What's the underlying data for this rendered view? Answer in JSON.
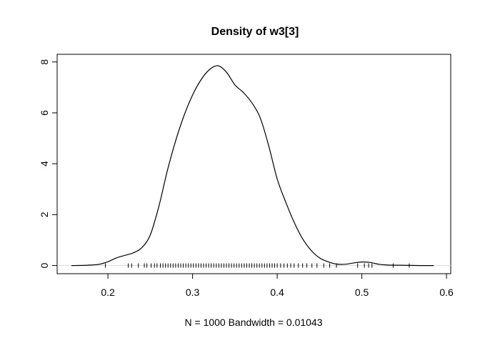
{
  "chart_data": {
    "type": "line",
    "title": "Density of w3[3]",
    "xlabel": "N = 1000   Bandwidth = 0.01043",
    "ylabel": "",
    "xlim": [
      0.14,
      0.605
    ],
    "ylim": [
      -0.32,
      8.3
    ],
    "x_ticks": [
      0.2,
      0.3,
      0.4,
      0.5,
      0.6
    ],
    "x_tick_labels": [
      "0.2",
      "0.3",
      "0.4",
      "0.5",
      "0.6"
    ],
    "y_ticks": [
      0,
      2,
      4,
      6,
      8
    ],
    "y_tick_labels": [
      "0",
      "2",
      "4",
      "6",
      "8"
    ],
    "zero_reference_line": true,
    "series": [
      {
        "x": [
          0.157,
          0.175,
          0.19,
          0.2,
          0.21,
          0.22,
          0.23,
          0.24,
          0.25,
          0.26,
          0.27,
          0.28,
          0.29,
          0.3,
          0.31,
          0.32,
          0.33,
          0.34,
          0.35,
          0.36,
          0.37,
          0.38,
          0.39,
          0.4,
          0.41,
          0.42,
          0.43,
          0.44,
          0.45,
          0.46,
          0.47,
          0.48,
          0.49,
          0.5,
          0.51,
          0.52,
          0.53,
          0.55,
          0.57,
          0.585
        ],
        "y": [
          0.0,
          0.01,
          0.05,
          0.15,
          0.3,
          0.4,
          0.5,
          0.7,
          1.2,
          2.3,
          3.7,
          4.9,
          5.9,
          6.7,
          7.3,
          7.7,
          7.85,
          7.6,
          7.1,
          6.8,
          6.4,
          5.8,
          4.7,
          3.4,
          2.5,
          1.7,
          1.05,
          0.6,
          0.3,
          0.15,
          0.06,
          0.05,
          0.1,
          0.14,
          0.12,
          0.05,
          0.02,
          0.01,
          0.0,
          0.0
        ]
      }
    ],
    "rug": [
      0.197,
      0.224,
      0.228,
      0.236,
      0.243,
      0.246,
      0.251,
      0.255,
      0.258,
      0.262,
      0.265,
      0.268,
      0.271,
      0.274,
      0.277,
      0.28,
      0.283,
      0.286,
      0.289,
      0.292,
      0.295,
      0.298,
      0.301,
      0.304,
      0.307,
      0.31,
      0.313,
      0.316,
      0.319,
      0.322,
      0.325,
      0.328,
      0.331,
      0.334,
      0.337,
      0.34,
      0.343,
      0.346,
      0.349,
      0.352,
      0.355,
      0.358,
      0.361,
      0.364,
      0.367,
      0.37,
      0.373,
      0.376,
      0.379,
      0.382,
      0.385,
      0.388,
      0.391,
      0.394,
      0.397,
      0.4,
      0.404,
      0.408,
      0.412,
      0.416,
      0.42,
      0.425,
      0.43,
      0.435,
      0.441,
      0.447,
      0.455,
      0.462,
      0.47,
      0.495,
      0.503,
      0.508,
      0.512,
      0.537,
      0.556
    ]
  }
}
